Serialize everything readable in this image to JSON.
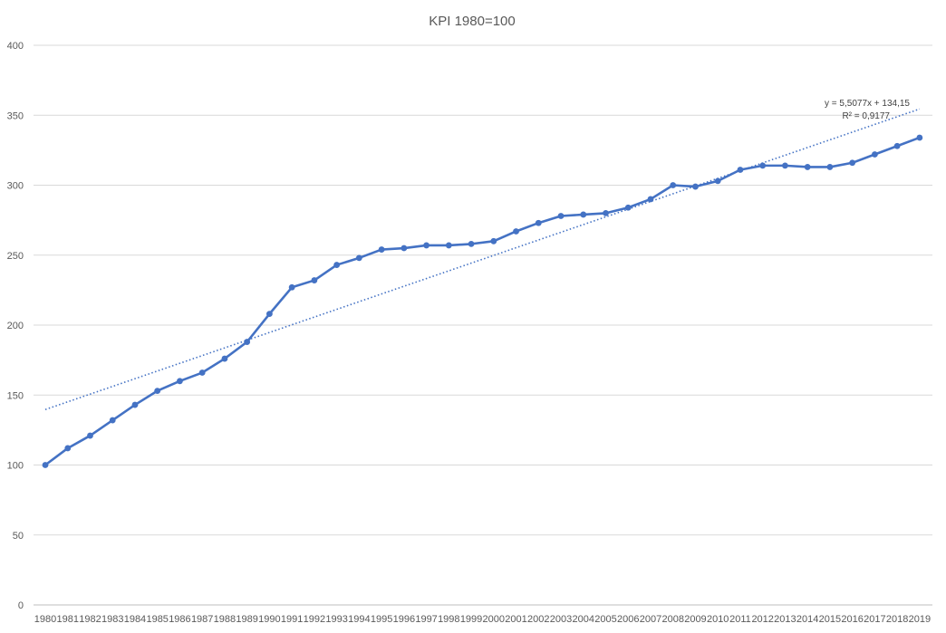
{
  "chart_data": {
    "type": "line",
    "title": "KPI 1980=100",
    "xlabel": "",
    "ylabel": "",
    "ylim": [
      0,
      400
    ],
    "yticks": [
      0,
      50,
      100,
      150,
      200,
      250,
      300,
      350,
      400
    ],
    "grid": true,
    "legend": "none",
    "categories": [
      "1980",
      "1981",
      "1982",
      "1983",
      "1984",
      "1985",
      "1986",
      "1987",
      "1988",
      "1989",
      "1990",
      "1991",
      "1992",
      "1993",
      "1994",
      "1995",
      "1996",
      "1997",
      "1998",
      "1999",
      "2000",
      "2001",
      "2002",
      "2003",
      "2004",
      "2005",
      "2006",
      "2007",
      "2008",
      "2009",
      "2010",
      "2011",
      "2012",
      "2013",
      "2014",
      "2015",
      "2016",
      "2017",
      "2018",
      "2019"
    ],
    "series": [
      {
        "values": [
          100,
          112,
          121,
          132,
          143,
          153,
          160,
          166,
          176,
          188,
          208,
          227,
          232,
          243,
          248,
          254,
          255,
          257,
          257,
          258,
          260,
          267,
          273,
          278,
          279,
          280,
          284,
          290,
          300,
          299,
          303,
          311,
          314,
          314,
          313,
          313,
          316,
          322,
          328,
          334
        ],
        "color": "#4472C4"
      }
    ],
    "trendline": {
      "type": "linear",
      "slope": 5.5077,
      "intercept": 134.15,
      "equation_label": "y = 5,5077x + 134,15",
      "r2_label": "R² = 0,9177",
      "color": "#4472C4"
    },
    "colors": {
      "grid": "#d9d9d9",
      "axis": "#bfbfbf",
      "text": "#595959"
    }
  }
}
